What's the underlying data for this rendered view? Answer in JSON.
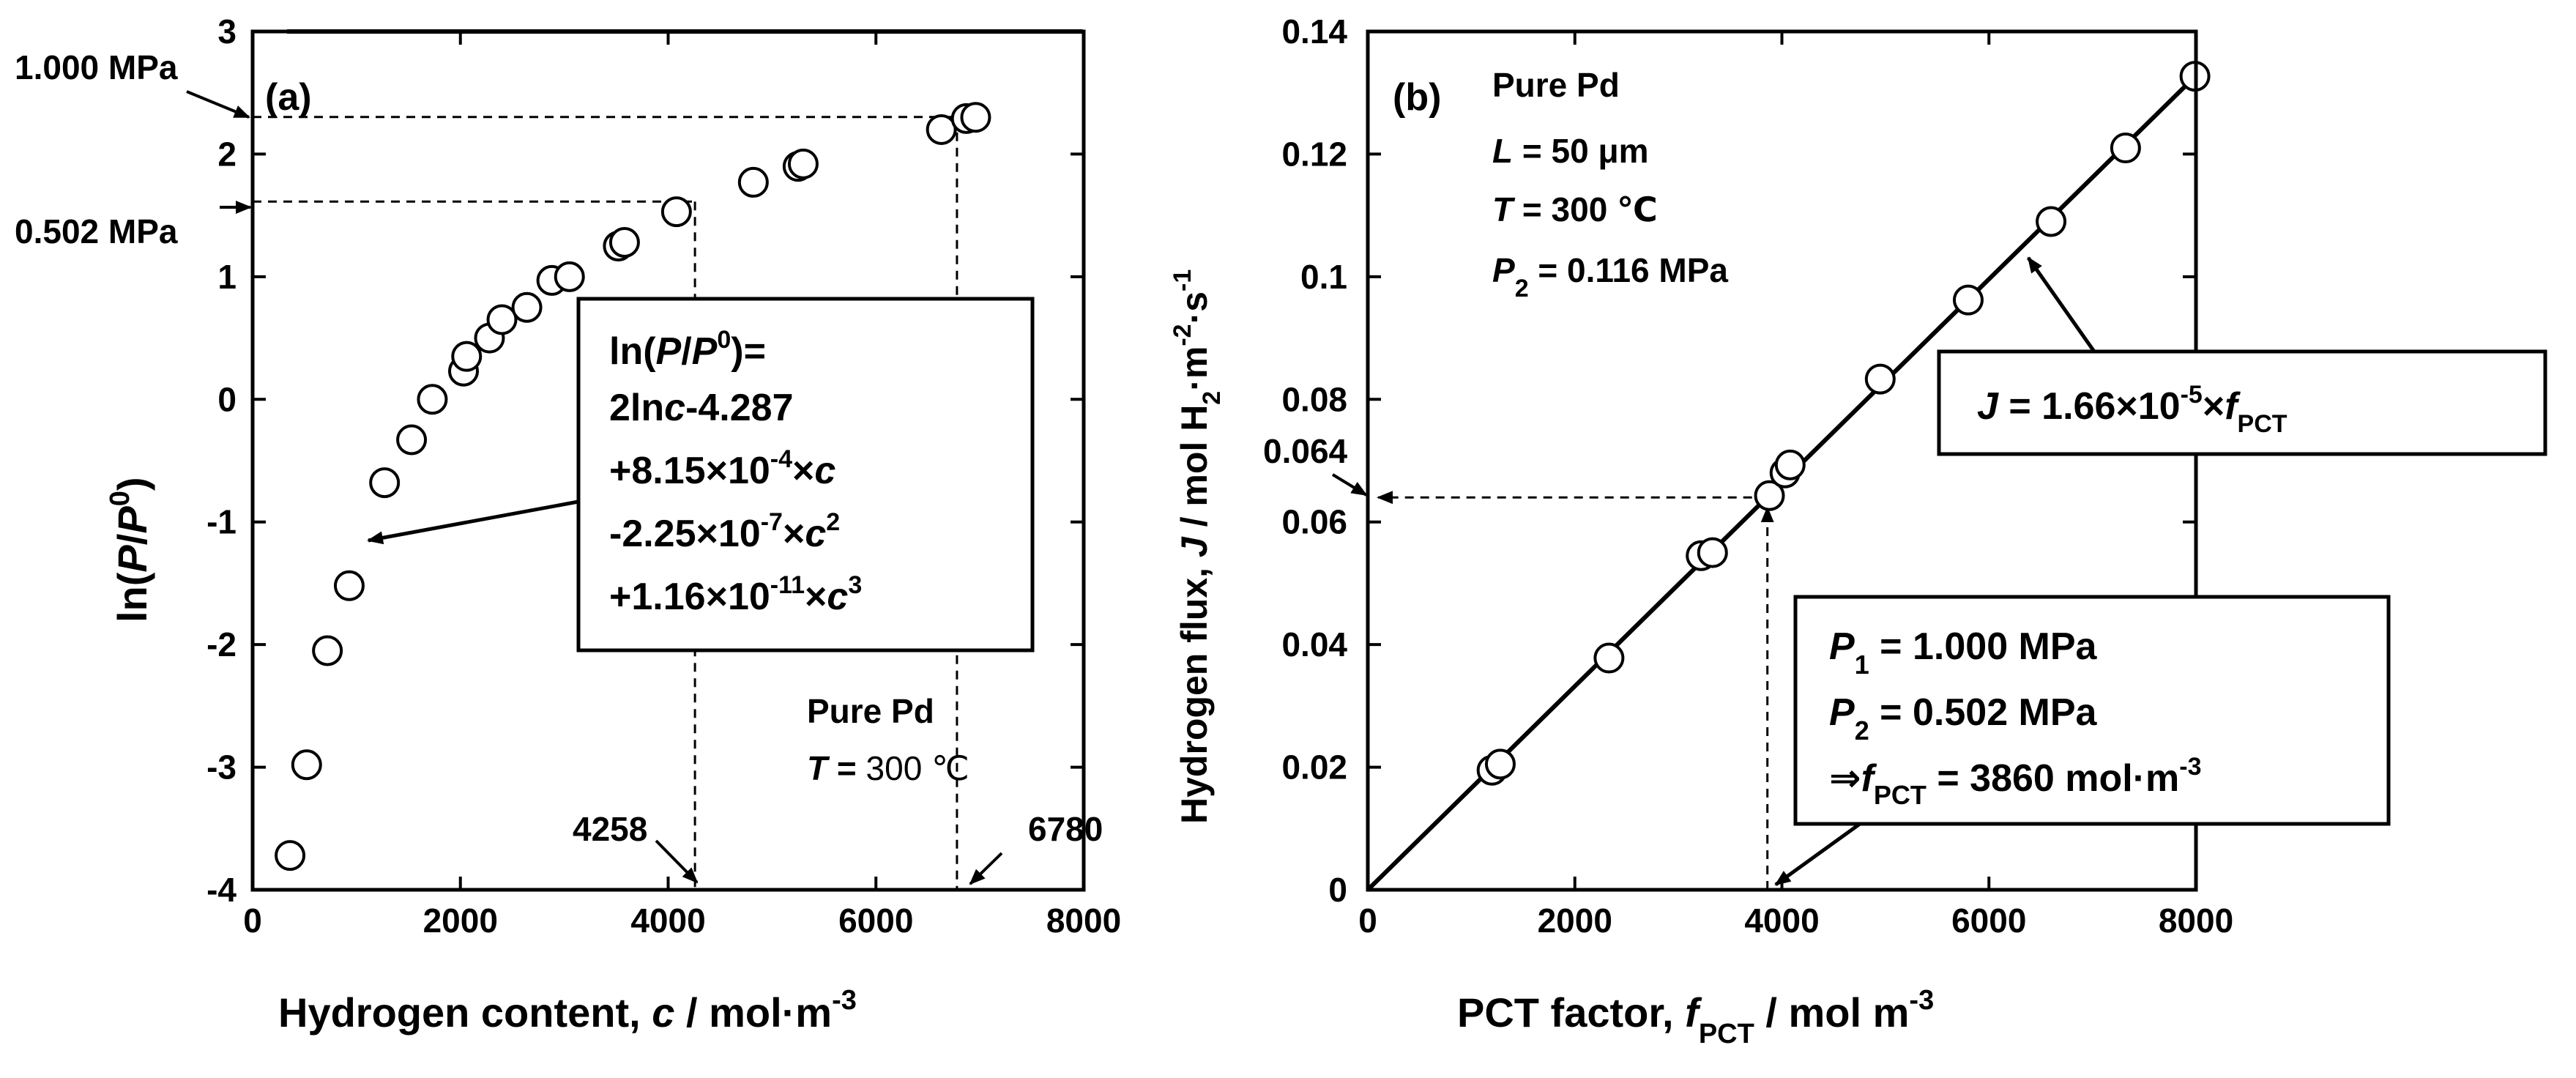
{
  "chart_data": [
    {
      "panel": "(a)",
      "type": "scatter",
      "xlabel_parts": [
        "Hydrogen content, ",
        "c",
        " / mol·m",
        "-3"
      ],
      "ylabel_parts": [
        "ln(",
        "P",
        "/",
        "P",
        "0",
        ")"
      ],
      "xlim": [
        0,
        8000
      ],
      "ylim": [
        -4,
        3
      ],
      "xticks": [
        0,
        2000,
        4000,
        6000,
        8000
      ],
      "yticks": [
        -4,
        -3,
        -2,
        -1,
        0,
        1,
        2,
        3
      ],
      "points": [
        [
          360,
          -3.72
        ],
        [
          520,
          -2.98
        ],
        [
          720,
          -2.05
        ],
        [
          930,
          -1.52
        ],
        [
          1270,
          -0.68
        ],
        [
          1530,
          -0.33
        ],
        [
          1730,
          0.0
        ],
        [
          2030,
          0.23
        ],
        [
          2060,
          0.35
        ],
        [
          2280,
          0.5
        ],
        [
          2400,
          0.65
        ],
        [
          2640,
          0.75
        ],
        [
          2880,
          0.97
        ],
        [
          3050,
          1.0
        ],
        [
          3520,
          1.25
        ],
        [
          3580,
          1.28
        ],
        [
          4080,
          1.53
        ],
        [
          4820,
          1.77
        ],
        [
          5250,
          1.9
        ],
        [
          5300,
          1.92
        ],
        [
          6630,
          2.2
        ],
        [
          6870,
          2.29
        ],
        [
          6960,
          2.3
        ]
      ],
      "fit_curve": {
        "equation_lines": [
          [
            "ln(",
            "P",
            "/",
            "P",
            "0",
            ")="
          ],
          [
            "2ln",
            "c",
            "-4.287"
          ],
          [
            "+8.15×10",
            "-4",
            "×",
            "c"
          ],
          [
            "-2.25×10",
            "-7",
            "×",
            "c",
            "2"
          ],
          [
            "+1.16×10",
            "-11",
            "×",
            "c",
            "3"
          ]
        ]
      },
      "pressure_labels": [
        "1.000 MPa",
        "0.502 MPa"
      ],
      "pressure_ln_values": [
        2.303,
        1.613
      ],
      "content_labels": [
        "4258",
        "6780"
      ],
      "content_values": [
        4258,
        6780
      ],
      "material": "Pure Pd",
      "temperature_parts": [
        "T",
        " = ",
        "300 ℃"
      ]
    },
    {
      "panel": "(b)",
      "type": "line",
      "xlabel_parts": [
        "PCT factor, ",
        "f",
        "PCT",
        " / mol m",
        "-3"
      ],
      "ylabel_parts": [
        "Hydrogen flux, ",
        "J",
        " / mol H",
        "2",
        "·m",
        "-2",
        "·s",
        "-1"
      ],
      "xlim": [
        0,
        8000
      ],
      "ylim": [
        0,
        0.14
      ],
      "xticks": [
        "0",
        "2000",
        "4000",
        "6000",
        "8000"
      ],
      "yticks": [
        "0",
        "0.02",
        "0.04",
        "0.06",
        "0.08",
        "0.1",
        "0.12",
        "0.14"
      ],
      "slope": 1.66e-05,
      "points": [
        [
          1200,
          0.0195
        ],
        [
          1280,
          0.0205
        ],
        [
          2330,
          0.0378
        ],
        [
          3220,
          0.0545
        ],
        [
          3330,
          0.055
        ],
        [
          3880,
          0.0643
        ],
        [
          4030,
          0.068
        ],
        [
          4080,
          0.0693
        ],
        [
          4950,
          0.0833
        ],
        [
          5800,
          0.0962
        ],
        [
          6600,
          0.109
        ],
        [
          7320,
          0.121
        ],
        [
          7990,
          0.1327
        ]
      ],
      "info_lines": [
        [
          "Pure Pd"
        ],
        [
          "L",
          " = 50 μm"
        ],
        [
          "T",
          " = 300 ℃"
        ],
        [
          "P",
          "2",
          " = 0.116 MPa"
        ]
      ],
      "fit_label_parts": [
        "J",
        " = 1.66×10",
        "-5",
        "×",
        "f",
        "PCT"
      ],
      "condition_lines": [
        [
          "P",
          "1",
          " = 1.000 MPa"
        ],
        [
          "P",
          "2",
          " = 0.502 MPa"
        ],
        [
          "⇒",
          "f",
          "PCT",
          " = 3860 mol·m",
          "-3"
        ]
      ],
      "marker_label": "0.064",
      "marker_value": 0.064,
      "marker_x_value": 3860
    }
  ],
  "colors": {
    "ink": "#000000",
    "marker_fill": "#ffffff",
    "background": "#ffffff"
  }
}
